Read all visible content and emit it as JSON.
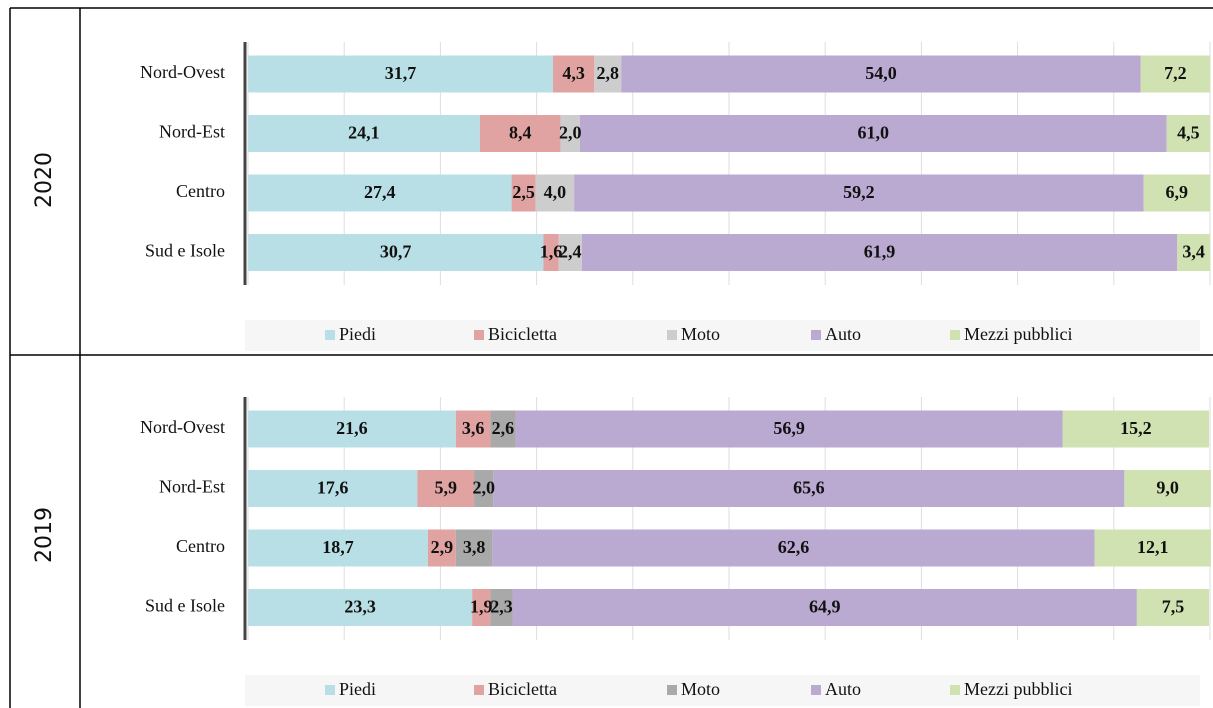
{
  "chart_data": [
    {
      "type": "bar",
      "orientation": "horizontal",
      "stacked": true,
      "title": "2020",
      "categories": [
        "Nord-Ovest",
        "Nord-Est",
        "Centro",
        "Sud e Isole"
      ],
      "series": [
        {
          "name": "Piedi",
          "color": "#b9dfe6",
          "values": [
            31.7,
            24.1,
            27.4,
            30.7
          ],
          "value_labels": [
            "31,7",
            "24,1",
            "27,4",
            "30,7"
          ]
        },
        {
          "name": "Bicicletta",
          "color": "#e0a3a2",
          "values": [
            4.3,
            8.4,
            2.5,
            1.6
          ],
          "value_labels": [
            "4,3",
            "8,4",
            "2,5",
            "1,6"
          ]
        },
        {
          "name": "Moto",
          "color": "#cdcdcd",
          "values": [
            2.8,
            2.0,
            4.0,
            2.4
          ],
          "value_labels": [
            "2,8",
            "2,0",
            "4,0",
            "2,4"
          ]
        },
        {
          "name": "Auto",
          "color": "#baa9d1",
          "values": [
            54.0,
            61.0,
            59.2,
            61.9
          ],
          "value_labels": [
            "54,0",
            "61,0",
            "59,2",
            "61,9"
          ]
        },
        {
          "name": "Mezzi pubblici",
          "color": "#d0e2b2",
          "values": [
            7.2,
            4.5,
            6.9,
            3.4
          ],
          "value_labels": [
            "7,2",
            "4,5",
            "6,9",
            "3,4"
          ]
        }
      ],
      "xlim": [
        0,
        100
      ],
      "xticks": [
        0,
        10,
        20,
        30,
        40,
        50,
        60,
        70,
        80,
        90,
        100
      ],
      "grid": true,
      "legend": "bottom"
    },
    {
      "type": "bar",
      "orientation": "horizontal",
      "stacked": true,
      "title": "2019",
      "categories": [
        "Nord-Ovest",
        "Nord-Est",
        "Centro",
        "Sud e Isole"
      ],
      "series": [
        {
          "name": "Piedi",
          "color": "#b9dfe6",
          "values": [
            21.6,
            17.6,
            18.7,
            23.3
          ],
          "value_labels": [
            "21,6",
            "17,6",
            "18,7",
            "23,3"
          ]
        },
        {
          "name": "Bicicletta",
          "color": "#e0a3a2",
          "values": [
            3.6,
            5.9,
            2.9,
            1.9
          ],
          "value_labels": [
            "3,6",
            "5,9",
            "2,9",
            "1,9"
          ]
        },
        {
          "name": "Moto",
          "color": "#a9a9a9",
          "values": [
            2.6,
            2.0,
            3.8,
            2.3
          ],
          "value_labels": [
            "2,6",
            "2,0",
            "3,8",
            "2,3"
          ]
        },
        {
          "name": "Auto",
          "color": "#baa9d1",
          "values": [
            56.9,
            65.6,
            62.6,
            64.9
          ],
          "value_labels": [
            "56,9",
            "65,6",
            "62,6",
            "64,9"
          ]
        },
        {
          "name": "Mezzi pubblici",
          "color": "#d0e2b2",
          "values": [
            15.2,
            9.0,
            12.1,
            7.5
          ],
          "value_labels": [
            "15,2",
            "9,0",
            "12,1",
            "7,5"
          ]
        }
      ],
      "xlim": [
        0,
        100
      ],
      "xticks": [
        0,
        10,
        20,
        30,
        40,
        50,
        60,
        70,
        80,
        90,
        100
      ],
      "grid": true,
      "legend": "bottom"
    }
  ]
}
